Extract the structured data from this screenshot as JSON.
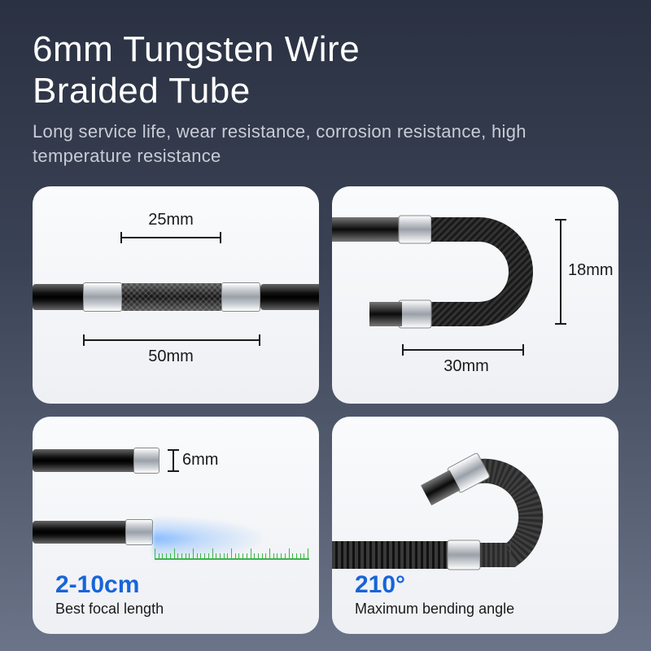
{
  "header": {
    "title_line1": "6mm Tungsten Wire",
    "title_line2": "Braided Tube",
    "subtitle": "Long service life, wear resistance, corrosion resistance, high temperature resistance"
  },
  "colors": {
    "bg_top": "#2a3142",
    "bg_bottom": "#6b7488",
    "card_bg": "#f5f6f8",
    "accent_blue": "#1864d8",
    "text_dark": "#1a1a1a",
    "text_light": "#c8ccd6",
    "ruler_green": "#3ab54a"
  },
  "panels": {
    "top_left": {
      "dim_top": "25mm",
      "dim_bottom": "50mm"
    },
    "top_right": {
      "dim_right": "18mm",
      "dim_bottom": "30mm"
    },
    "bottom_left": {
      "dim_thickness": "6mm",
      "feature_value": "2-10cm",
      "feature_label": "Best focal length"
    },
    "bottom_right": {
      "feature_value": "210°",
      "feature_label": "Maximum bending angle"
    }
  }
}
